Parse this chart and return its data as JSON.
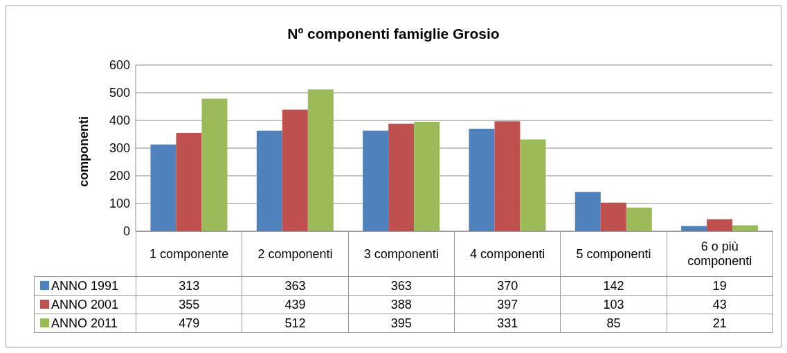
{
  "chart_data": {
    "type": "bar",
    "title": "Nº componenti famiglie Grosio",
    "ylabel": "componenti",
    "categories": [
      "1 componente",
      "2 componenti",
      "3 componenti",
      "4 componenti",
      "5 componenti",
      "6 o più componenti"
    ],
    "series": [
      {
        "name": "ANNO 1991",
        "color": "#4f81bd",
        "values": [
          313,
          363,
          363,
          370,
          142,
          19
        ]
      },
      {
        "name": "ANNO 2001",
        "color": "#c0504d",
        "values": [
          355,
          439,
          388,
          397,
          103,
          43
        ]
      },
      {
        "name": "ANNO 2011",
        "color": "#9bbb59",
        "values": [
          479,
          512,
          395,
          331,
          85,
          21
        ]
      }
    ],
    "ylim": [
      0,
      600
    ],
    "yticks": [
      0,
      100,
      200,
      300,
      400,
      500,
      600
    ],
    "grid": "y",
    "legend": "bottom left",
    "data_labels": true
  }
}
